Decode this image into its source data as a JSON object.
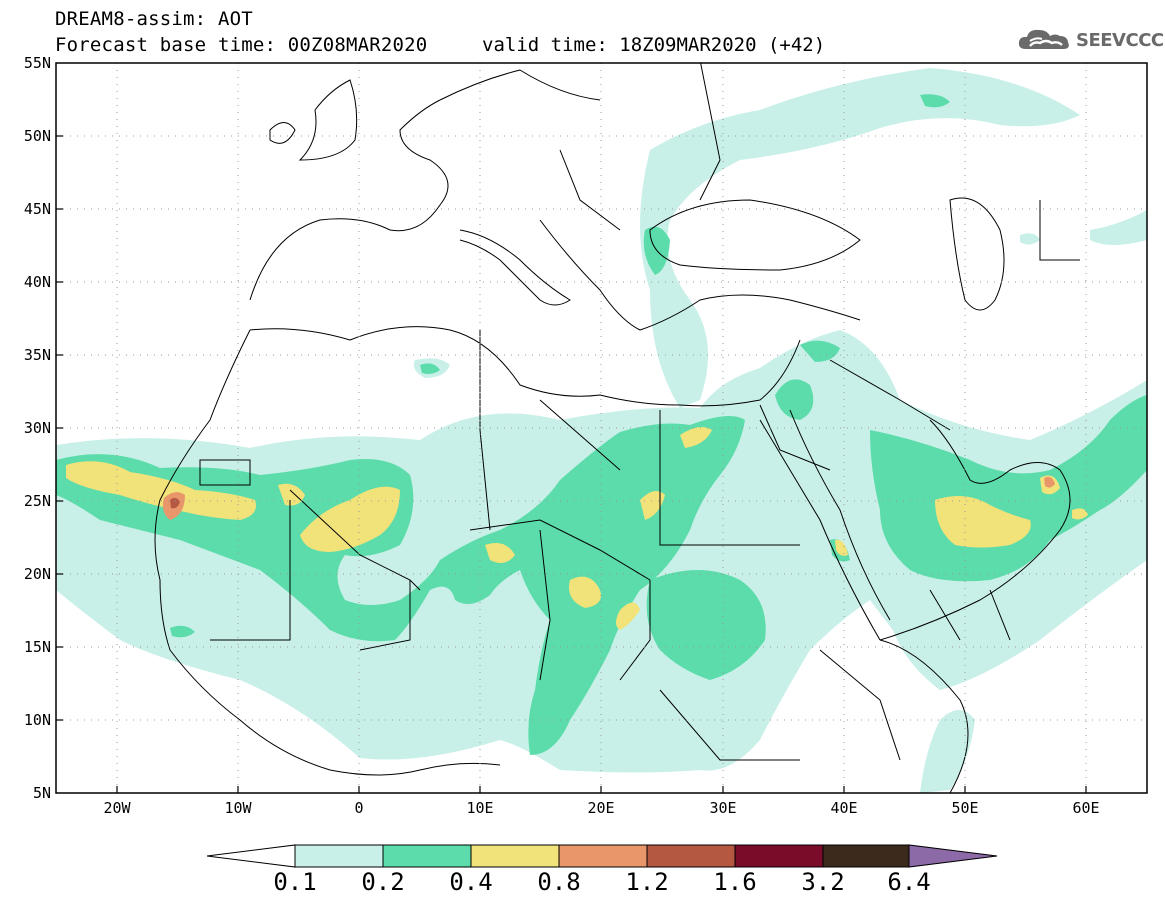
{
  "header": {
    "line1": "DREAM8-assim: AOT",
    "base_time": "Forecast base time: 00Z08MAR2020",
    "valid_time": "valid time: 18Z09MAR2020 (+42)"
  },
  "logo": {
    "text": "SEEVCCC",
    "icon": "cloud-icon"
  },
  "map": {
    "lat_labels": [
      "55N",
      "50N",
      "45N",
      "40N",
      "35N",
      "30N",
      "25N",
      "20N",
      "15N",
      "10N",
      "5N"
    ],
    "lon_labels": [
      "20W",
      "10W",
      "0",
      "10E",
      "20E",
      "30E",
      "40E",
      "50E",
      "60E"
    ],
    "lon_range": [
      -25,
      65
    ],
    "lat_range": [
      5,
      55
    ]
  },
  "legend": {
    "levels": [
      "0.1",
      "0.2",
      "0.4",
      "0.8",
      "1.2",
      "1.6",
      "3.2",
      "6.4"
    ],
    "colors": [
      "#ffffff",
      "#c8f0e8",
      "#5cdcaa",
      "#f2e27a",
      "#e8966a",
      "#b45842",
      "#7a0c2a",
      "#3c2a1c",
      "#8c6aa8"
    ]
  },
  "colors": {
    "c01": "#c8f0e8",
    "c02": "#5cdcaa",
    "c04": "#f2e27a",
    "c08": "#e8966a",
    "c12": "#b45842"
  }
}
